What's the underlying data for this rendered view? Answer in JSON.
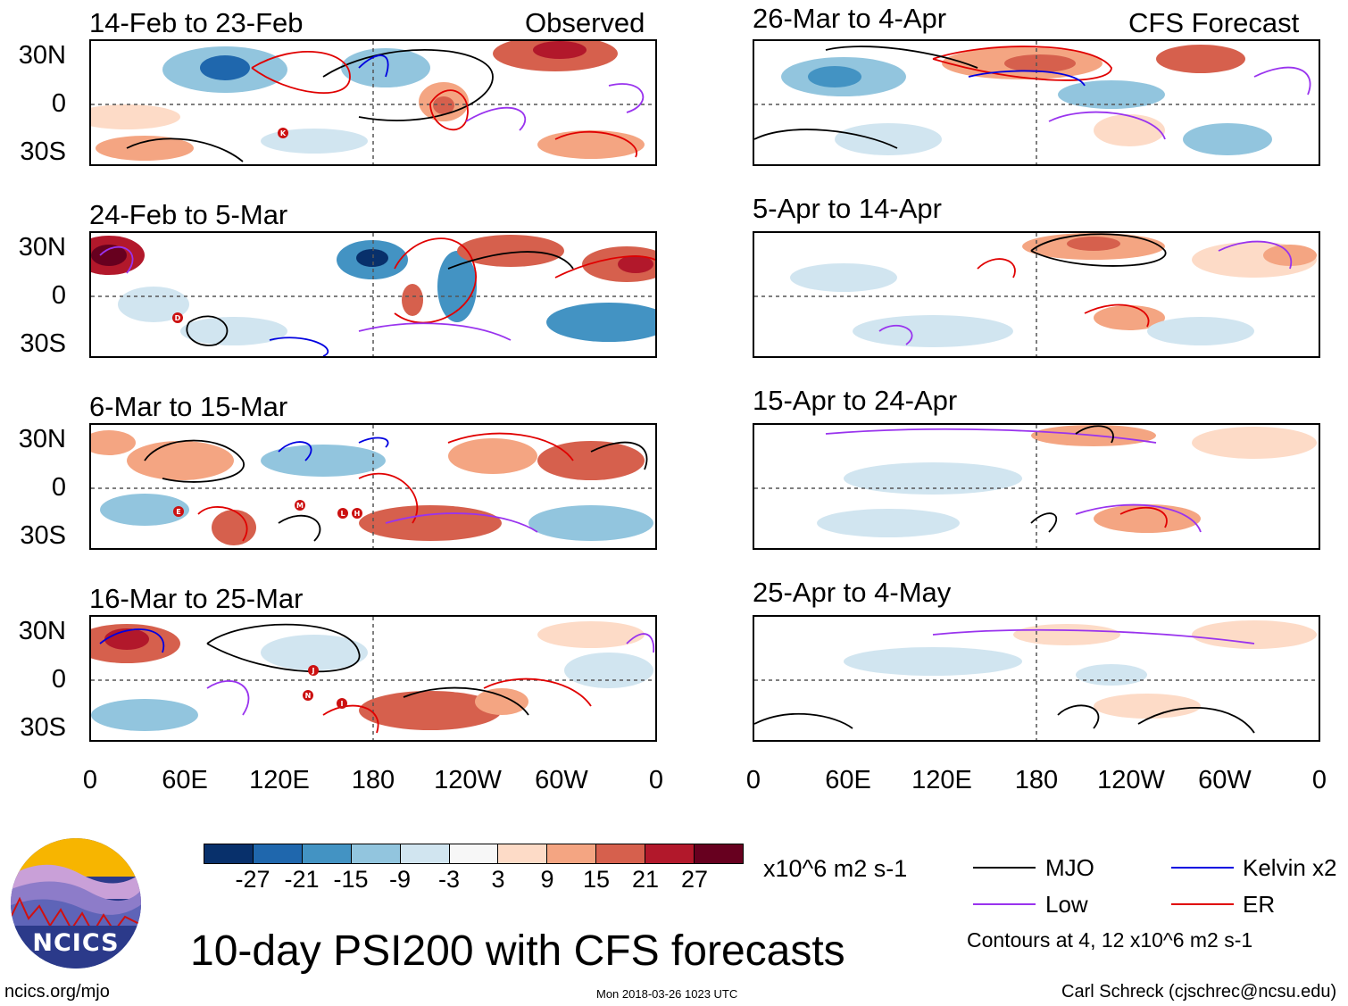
{
  "panels": [
    {
      "title": "14-Feb to 23-Feb",
      "tag": "Observed",
      "storms": [
        "K"
      ]
    },
    {
      "title": "24-Feb to 5-Mar",
      "tag": "",
      "storms": [
        "D"
      ]
    },
    {
      "title": "6-Mar to 15-Mar",
      "tag": "",
      "storms": [
        "E",
        "M",
        "L",
        "H"
      ]
    },
    {
      "title": "16-Mar to 25-Mar",
      "tag": "",
      "storms": [
        "J",
        "N",
        "I"
      ]
    },
    {
      "title": "26-Mar to 4-Apr",
      "tag": "CFS Forecast",
      "storms": []
    },
    {
      "title": "5-Apr to 14-Apr",
      "tag": "",
      "storms": []
    },
    {
      "title": "15-Apr to 24-Apr",
      "tag": "",
      "storms": []
    },
    {
      "title": "25-Apr to 4-May",
      "tag": "",
      "storms": []
    }
  ],
  "lat_labels": [
    "30N",
    "0",
    "30S"
  ],
  "lon_labels": [
    "0",
    "60E",
    "120E",
    "180",
    "120W",
    "60W",
    "0"
  ],
  "colorbar": {
    "labels": [
      "-27",
      "-21",
      "-15",
      "-9",
      "-3",
      "3",
      "9",
      "15",
      "21",
      "27"
    ],
    "colors": [
      "#08306b",
      "#1f67ad",
      "#4393c3",
      "#92c5de",
      "#d1e5f0",
      "#f7f7f7",
      "#fddbc7",
      "#f4a582",
      "#d6604d",
      "#b2182b",
      "#67001f"
    ],
    "units": "x10^6 m2 s-1"
  },
  "legend": [
    {
      "label": "MJO",
      "color": "#000000"
    },
    {
      "label": "Kelvin x2",
      "color": "#0000e0"
    },
    {
      "label": "Low",
      "color": "#9933ee"
    },
    {
      "label": "ER",
      "color": "#e00000"
    }
  ],
  "contour_note": "Contours at 4, 12 x10^6 m2 s-1",
  "main_title": "10-day PSI200 with CFS forecasts",
  "logo_text": "NCICS",
  "footer": {
    "left": "ncics.org/mjo",
    "center": "Mon 2018-03-26 1023 UTC",
    "right": "Carl Schreck (cjschrec@ncsu.edu)"
  }
}
